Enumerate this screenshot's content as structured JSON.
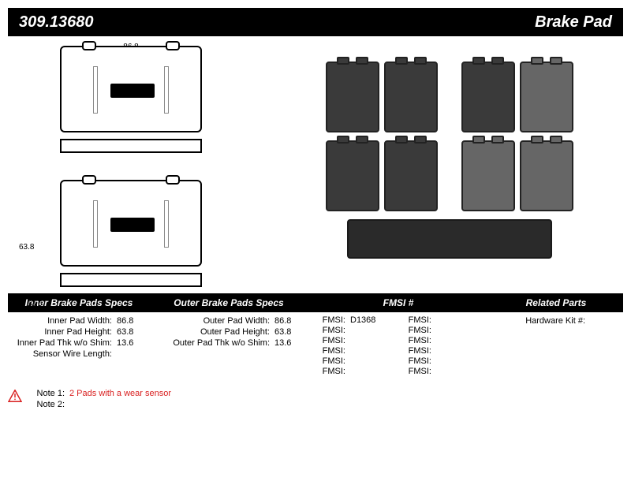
{
  "header": {
    "part_number": "309.13680",
    "title": "Brake Pad"
  },
  "dimensions": {
    "width": "86.8",
    "height": "63.8",
    "thickness": "13.6"
  },
  "specs": {
    "inner": {
      "heading": "Inner Brake Pads Specs",
      "rows": [
        {
          "label": "Inner Pad Width:",
          "value": "86.8"
        },
        {
          "label": "Inner Pad Height:",
          "value": "63.8"
        },
        {
          "label": "Inner Pad Thk w/o Shim:",
          "value": "13.6"
        },
        {
          "label": "Sensor Wire Length:",
          "value": ""
        }
      ]
    },
    "outer": {
      "heading": "Outer Brake Pads Specs",
      "rows": [
        {
          "label": "Outer Pad Width:",
          "value": "86.8"
        },
        {
          "label": "Outer Pad Height:",
          "value": "63.8"
        },
        {
          "label": "Outer Pad Thk w/o Shim:",
          "value": "13.6"
        }
      ]
    },
    "fmsi": {
      "heading": "FMSI #",
      "items": [
        {
          "label": "FMSI:",
          "value": "D1368"
        },
        {
          "label": "FMSI:",
          "value": ""
        },
        {
          "label": "FMSI:",
          "value": ""
        },
        {
          "label": "FMSI:",
          "value": ""
        },
        {
          "label": "FMSI:",
          "value": ""
        },
        {
          "label": "FMSI:",
          "value": ""
        },
        {
          "label": "FMSI:",
          "value": ""
        },
        {
          "label": "FMSI:",
          "value": ""
        },
        {
          "label": "FMSI:",
          "value": ""
        },
        {
          "label": "FMSI:",
          "value": ""
        },
        {
          "label": "FMSI:",
          "value": ""
        },
        {
          "label": "FMSI:",
          "value": ""
        }
      ]
    },
    "related": {
      "heading": "Related Parts",
      "rows": [
        {
          "label": "Hardware Kit #:",
          "value": ""
        }
      ]
    }
  },
  "notes": {
    "note1": {
      "label": "Note 1:",
      "value": "2 Pads with a wear sensor"
    },
    "note2": {
      "label": "Note 2:",
      "value": ""
    }
  },
  "colors": {
    "header_bg": "#000000",
    "header_fg": "#ffffff",
    "note_red": "#d92020"
  }
}
